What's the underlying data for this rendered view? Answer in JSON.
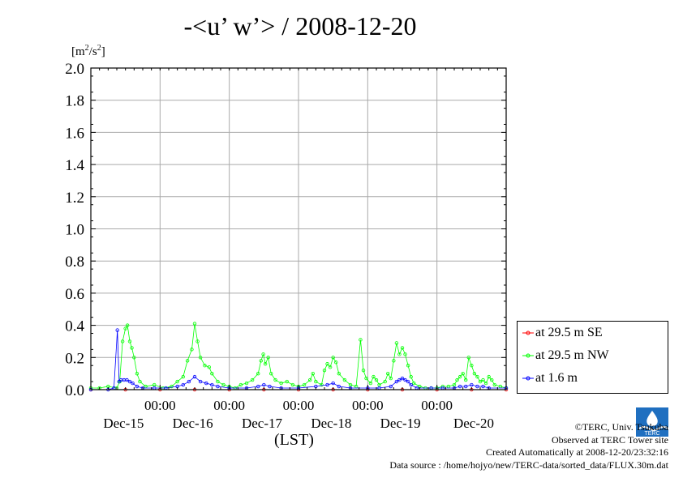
{
  "title": "-<u’ w’> / 2008-12-20",
  "unit": {
    "prefix": "[m",
    "sup": "2",
    "mid": "/s",
    "sup2": "2",
    "suffix": "]"
  },
  "xaxis_label": "(LST)",
  "credits": {
    "copyright": "©TERC, Univ. Tsukuba",
    "observed": "Observed at TERC Tower site",
    "created": "Created Automatically at 2008-12-20/23:32:16",
    "source": "Data source : /home/hojyo/new/TERC-data/sorted_data/FLUX.30m.dat"
  },
  "logo_text": "TERC",
  "chart_data": {
    "type": "line",
    "ylim": [
      0,
      2.0
    ],
    "yticks": [
      "0.0",
      "0.2",
      "0.4",
      "0.6",
      "0.8",
      "1.0",
      "1.2",
      "1.4",
      "1.6",
      "1.8",
      "2.0"
    ],
    "xlim": [
      0,
      144
    ],
    "xticks": [
      {
        "x": 24,
        "time": "00:00",
        "date": "Dec-15"
      },
      {
        "x": 48,
        "time": "00:00",
        "date": "Dec-16"
      },
      {
        "x": 72,
        "time": "00:00",
        "date": "Dec-17"
      },
      {
        "x": 96,
        "time": "00:00",
        "date": "Dec-18"
      },
      {
        "x": 120,
        "time": "00:00",
        "date": "Dec-19"
      },
      {
        "x": 144,
        "time": "",
        "date": "Dec-20"
      }
    ],
    "grid": true,
    "legend_position": "right-bottom",
    "series": [
      {
        "name": "at 29.5 m SE",
        "color": "#ff0000",
        "points": [
          [
            0,
            0
          ],
          [
            12,
            0
          ],
          [
            24,
            0
          ],
          [
            36,
            0
          ],
          [
            48,
            0
          ],
          [
            60,
            0
          ],
          [
            72,
            0
          ],
          [
            84,
            0
          ],
          [
            96,
            0
          ],
          [
            108,
            0
          ],
          [
            120,
            0
          ],
          [
            132,
            0
          ],
          [
            144,
            0
          ]
        ]
      },
      {
        "name": "at 29.5 m NW",
        "color": "#00ff00",
        "points": [
          [
            0,
            0.01
          ],
          [
            3,
            0.01
          ],
          [
            6,
            0.02
          ],
          [
            9,
            0.01
          ],
          [
            10,
            0.05
          ],
          [
            11,
            0.3
          ],
          [
            12,
            0.38
          ],
          [
            12.7,
            0.4
          ],
          [
            13.5,
            0.3
          ],
          [
            14.2,
            0.26
          ],
          [
            15,
            0.2
          ],
          [
            16,
            0.1
          ],
          [
            17,
            0.05
          ],
          [
            19,
            0.02
          ],
          [
            22,
            0.03
          ],
          [
            25,
            0.01
          ],
          [
            28,
            0.02
          ],
          [
            30,
            0.05
          ],
          [
            32,
            0.08
          ],
          [
            33.5,
            0.18
          ],
          [
            35,
            0.25
          ],
          [
            36,
            0.41
          ],
          [
            37,
            0.3
          ],
          [
            38,
            0.2
          ],
          [
            39.5,
            0.15
          ],
          [
            41,
            0.14
          ],
          [
            42,
            0.1
          ],
          [
            44,
            0.05
          ],
          [
            46,
            0.03
          ],
          [
            48,
            0.02
          ],
          [
            50,
            0.01
          ],
          [
            52,
            0.03
          ],
          [
            54,
            0.04
          ],
          [
            56,
            0.06
          ],
          [
            58,
            0.1
          ],
          [
            59,
            0.18
          ],
          [
            59.8,
            0.22
          ],
          [
            60.5,
            0.16
          ],
          [
            61.5,
            0.2
          ],
          [
            62.5,
            0.1
          ],
          [
            64,
            0.06
          ],
          [
            66,
            0.04
          ],
          [
            68,
            0.05
          ],
          [
            70,
            0.03
          ],
          [
            72,
            0.02
          ],
          [
            74,
            0.03
          ],
          [
            76,
            0.06
          ],
          [
            77,
            0.1
          ],
          [
            78,
            0.05
          ],
          [
            80,
            0.03
          ],
          [
            81,
            0.12
          ],
          [
            82,
            0.16
          ],
          [
            83,
            0.14
          ],
          [
            84,
            0.2
          ],
          [
            85,
            0.17
          ],
          [
            86,
            0.1
          ],
          [
            88,
            0.06
          ],
          [
            90,
            0.03
          ],
          [
            92,
            0.02
          ],
          [
            93.5,
            0.31
          ],
          [
            94.5,
            0.12
          ],
          [
            95.5,
            0.07
          ],
          [
            97,
            0.04
          ],
          [
            98,
            0.08
          ],
          [
            99,
            0.06
          ],
          [
            100,
            0.03
          ],
          [
            102,
            0.05
          ],
          [
            103,
            0.1
          ],
          [
            104,
            0.07
          ],
          [
            105,
            0.18
          ],
          [
            106,
            0.29
          ],
          [
            107,
            0.22
          ],
          [
            108,
            0.26
          ],
          [
            109,
            0.22
          ],
          [
            110,
            0.15
          ],
          [
            111,
            0.08
          ],
          [
            112,
            0.04
          ],
          [
            114,
            0.02
          ],
          [
            116,
            0.01
          ],
          [
            118,
            0.01
          ],
          [
            120,
            0.01
          ],
          [
            122,
            0.02
          ],
          [
            124,
            0.02
          ],
          [
            126,
            0.03
          ],
          [
            127,
            0.06
          ],
          [
            128,
            0.08
          ],
          [
            129,
            0.1
          ],
          [
            130,
            0.06
          ],
          [
            131,
            0.2
          ],
          [
            132,
            0.15
          ],
          [
            133,
            0.1
          ],
          [
            134,
            0.08
          ],
          [
            135,
            0.05
          ],
          [
            136,
            0.06
          ],
          [
            137,
            0.04
          ],
          [
            138,
            0.08
          ],
          [
            139,
            0.06
          ],
          [
            140,
            0.03
          ],
          [
            142,
            0.02
          ],
          [
            144,
            0.01
          ]
        ]
      },
      {
        "name": "at 1.6 m",
        "color": "#0000ff",
        "points": [
          [
            0,
            0
          ],
          [
            6,
            0
          ],
          [
            8,
            0.01
          ],
          [
            9.2,
            0.37
          ],
          [
            9.8,
            0.05
          ],
          [
            10.5,
            0.06
          ],
          [
            11.5,
            0.06
          ],
          [
            12.5,
            0.06
          ],
          [
            13.5,
            0.05
          ],
          [
            14.5,
            0.04
          ],
          [
            16,
            0.02
          ],
          [
            18,
            0.01
          ],
          [
            22,
            0.01
          ],
          [
            26,
            0.01
          ],
          [
            30,
            0.02
          ],
          [
            32,
            0.03
          ],
          [
            34,
            0.05
          ],
          [
            36,
            0.08
          ],
          [
            38,
            0.05
          ],
          [
            40,
            0.04
          ],
          [
            42,
            0.03
          ],
          [
            44,
            0.02
          ],
          [
            48,
            0.01
          ],
          [
            54,
            0.01
          ],
          [
            58,
            0.02
          ],
          [
            60,
            0.03
          ],
          [
            62,
            0.02
          ],
          [
            66,
            0.01
          ],
          [
            72,
            0.01
          ],
          [
            78,
            0.02
          ],
          [
            82,
            0.03
          ],
          [
            84,
            0.04
          ],
          [
            86,
            0.02
          ],
          [
            90,
            0.01
          ],
          [
            96,
            0.01
          ],
          [
            100,
            0.01
          ],
          [
            104,
            0.02
          ],
          [
            106,
            0.05
          ],
          [
            107,
            0.06
          ],
          [
            108,
            0.07
          ],
          [
            109,
            0.06
          ],
          [
            110,
            0.05
          ],
          [
            111,
            0.03
          ],
          [
            113,
            0.01
          ],
          [
            118,
            0.01
          ],
          [
            122,
            0.01
          ],
          [
            126,
            0.01
          ],
          [
            128,
            0.02
          ],
          [
            130,
            0.02
          ],
          [
            132,
            0.03
          ],
          [
            134,
            0.02
          ],
          [
            136,
            0.02
          ],
          [
            138,
            0.01
          ],
          [
            144,
            0.01
          ]
        ]
      }
    ]
  }
}
